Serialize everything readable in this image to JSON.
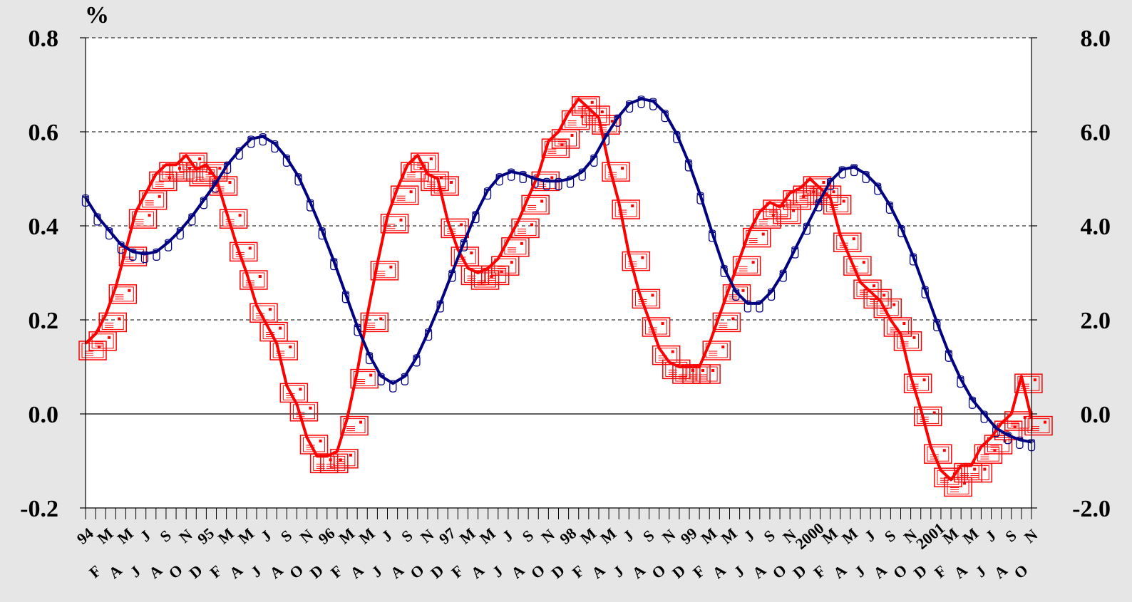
{
  "chart_data": {
    "type": "line",
    "ylabel_left": "%",
    "ylim_left": [
      -0.2,
      0.8
    ],
    "ylim_right": [
      -2.0,
      8.0
    ],
    "yticks_left": [
      "-0.2",
      "0.0",
      "0.2",
      "0.4",
      "0.6",
      "0.8"
    ],
    "yticks_right": [
      "-2.0",
      "0.0",
      "2.0",
      "4.0",
      "6.0",
      "8.0"
    ],
    "grid": "dashed horizontal",
    "x_tick_labels_row1": [
      "94",
      "M",
      "M",
      "J",
      "S",
      "N",
      "95",
      "M",
      "M",
      "J",
      "S",
      "N",
      "96",
      "M",
      "M",
      "J",
      "S",
      "N",
      "97",
      "M",
      "M",
      "J",
      "S",
      "N",
      "98",
      "M",
      "M",
      "J",
      "S",
      "N",
      "99",
      "M",
      "M",
      "J",
      "S",
      "N",
      "2000",
      "M",
      "M",
      "J",
      "S",
      "N",
      "2001",
      "M",
      "M",
      "J",
      "S",
      "N"
    ],
    "x_tick_labels_row2": [
      "F",
      "A",
      "J",
      "A",
      "O",
      "D",
      "F",
      "A",
      "J",
      "A",
      "O",
      "D",
      "F",
      "A",
      "J",
      "A",
      "O",
      "D",
      "F",
      "A",
      "J",
      "A",
      "O",
      "D",
      "F",
      "A",
      "J",
      "A",
      "O",
      "D",
      "F",
      "A",
      "J",
      "A",
      "O",
      "D",
      "F",
      "A",
      "J",
      "A",
      "O",
      "D",
      "F",
      "A",
      "J",
      "A",
      "O"
    ],
    "series": [
      {
        "axis": "left",
        "color": "#ff0000",
        "marker": "envelope",
        "values": [
          0.15,
          0.17,
          0.21,
          0.27,
          0.35,
          0.43,
          0.47,
          0.51,
          0.53,
          0.53,
          0.55,
          0.52,
          0.53,
          0.5,
          0.43,
          0.36,
          0.3,
          0.23,
          0.19,
          0.15,
          0.06,
          0.02,
          -0.05,
          -0.09,
          -0.09,
          -0.08,
          -0.01,
          0.09,
          0.21,
          0.32,
          0.42,
          0.48,
          0.53,
          0.55,
          0.51,
          0.5,
          0.41,
          0.35,
          0.31,
          0.3,
          0.31,
          0.33,
          0.37,
          0.41,
          0.46,
          0.51,
          0.58,
          0.6,
          0.64,
          0.67,
          0.65,
          0.63,
          0.53,
          0.45,
          0.34,
          0.26,
          0.2,
          0.14,
          0.11,
          0.1,
          0.1,
          0.1,
          0.15,
          0.21,
          0.27,
          0.33,
          0.39,
          0.43,
          0.45,
          0.44,
          0.47,
          0.48,
          0.5,
          0.48,
          0.46,
          0.38,
          0.33,
          0.28,
          0.26,
          0.24,
          0.2,
          0.17,
          0.08,
          0.01,
          -0.07,
          -0.12,
          -0.14,
          -0.11,
          -0.11,
          -0.07,
          -0.05,
          -0.02,
          0.0,
          0.08,
          -0.01
        ]
      },
      {
        "axis": "right",
        "color": "#000080",
        "marker": "cylinder",
        "values": [
          4.6,
          4.2,
          3.9,
          3.6,
          3.45,
          3.4,
          3.45,
          3.65,
          3.9,
          4.2,
          4.55,
          4.9,
          5.3,
          5.6,
          5.85,
          5.9,
          5.75,
          5.45,
          5.05,
          4.5,
          3.9,
          3.25,
          2.55,
          1.85,
          1.25,
          0.8,
          0.65,
          0.8,
          1.2,
          1.75,
          2.35,
          3.0,
          3.65,
          4.25,
          4.75,
          5.05,
          5.15,
          5.1,
          5.0,
          4.95,
          4.95,
          5.0,
          5.15,
          5.45,
          5.9,
          6.3,
          6.6,
          6.7,
          6.65,
          6.4,
          5.95,
          5.35,
          4.65,
          3.85,
          3.1,
          2.6,
          2.35,
          2.35,
          2.6,
          3.0,
          3.5,
          4.0,
          4.5,
          4.95,
          5.2,
          5.25,
          5.1,
          4.85,
          4.45,
          3.95,
          3.35,
          2.65,
          1.95,
          1.3,
          0.75,
          0.3,
          0.0,
          -0.3,
          -0.45,
          -0.55,
          -0.6
        ]
      }
    ]
  }
}
